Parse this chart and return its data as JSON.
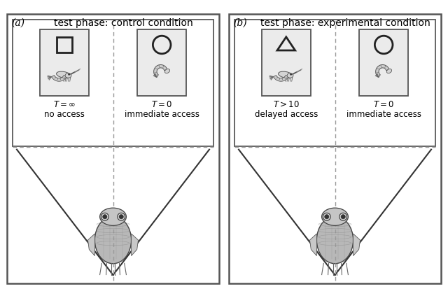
{
  "fig_width": 6.4,
  "fig_height": 4.13,
  "bg_color": "#ffffff",
  "border_color": "#555555",
  "dashed_color": "#999999",
  "card_bg": "#eeeeee",
  "label_a": "(a)",
  "label_b": "(b)",
  "title_a": "test phase: control condition",
  "title_b": "test phase: experimental condition",
  "text_left_a_line1": "$T = \\infty$",
  "text_left_a_line2": "no access",
  "text_right_a_line1": "$T = 0$",
  "text_right_a_line2": "immediate access",
  "text_left_b_line1": "$T > 10$",
  "text_left_b_line2": "delayed access",
  "text_right_b_line1": "$T = 0$",
  "text_right_b_line2": "immediate access",
  "font_size_title": 10,
  "font_size_label": 10,
  "font_size_text": 8.5
}
